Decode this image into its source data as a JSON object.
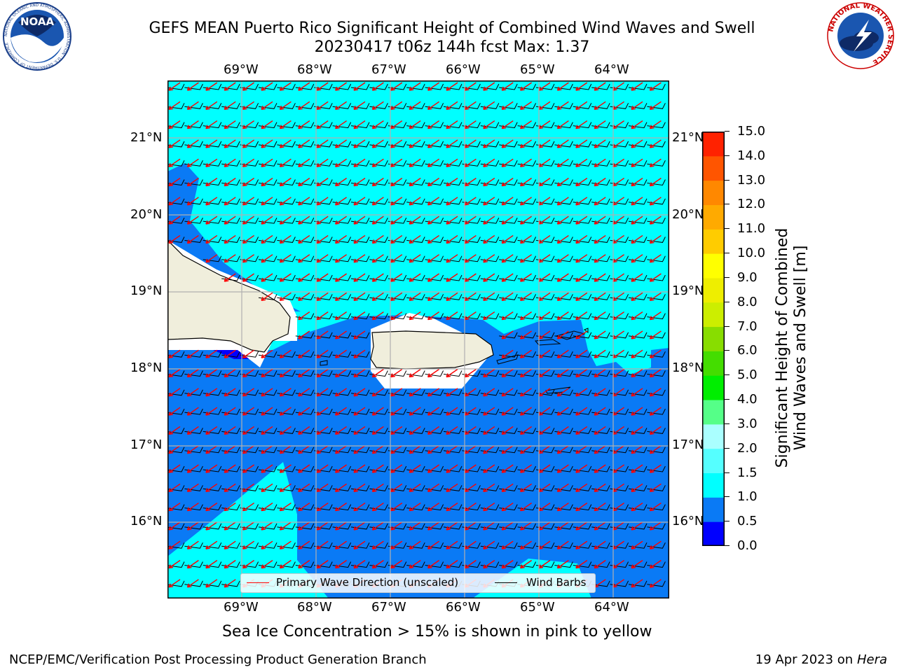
{
  "header": {
    "title_line1": "GEFS MEAN Puerto Rico Significant Height of Combined Wind Waves and Swell",
    "title_line2": "20230417 t06z 144h fcst   Max: 1.37"
  },
  "logos": {
    "noaa_text": "NOAA",
    "noaa_ring_text": "NATIONAL OCEANIC AND ATMOSPHERIC ADMINISTRATION · U.S. DEPARTMENT OF COMMERCE",
    "nws_ring_text": "NATIONAL WEATHER SERVICE"
  },
  "map": {
    "lon_labels": [
      "69°W",
      "68°W",
      "67°W",
      "66°W",
      "65°W",
      "64°W"
    ],
    "lat_labels": [
      "21°N",
      "20°N",
      "19°N",
      "18°N",
      "17°N",
      "16°N"
    ],
    "colors": {
      "ocean_light": "#00ffff",
      "ocean_dark": "#0a7af5",
      "land": "#f0eedc",
      "ice_free_white": "#ffffff",
      "wave_arrow": "#ff0000",
      "wind_barb": "#000000",
      "grid": "#b0b0b0"
    },
    "legend": {
      "primary_wave": "Primary Wave Direction (unscaled)",
      "wind_barbs": "Wind Barbs"
    }
  },
  "colorbar": {
    "label_line1": "Significant Height of Combined",
    "label_line2": "Wind Waves and Swell [m]",
    "ticks": [
      "0.0",
      "0.5",
      "1.0",
      "1.5",
      "2.0",
      "3.0",
      "4.0",
      "5.0",
      "6.0",
      "7.0",
      "8.0",
      "9.0",
      "10.0",
      "11.0",
      "12.0",
      "13.0",
      "14.0",
      "15.0"
    ],
    "colors": [
      "#0000ff",
      "#0a7af5",
      "#00ffff",
      "#55ffff",
      "#aaffff",
      "#55ff88",
      "#00ee00",
      "#44dd00",
      "#88dd00",
      "#ccee00",
      "#eeee00",
      "#ffff00",
      "#ffcc00",
      "#ffaa00",
      "#ff8800",
      "#ff5500",
      "#ff2200"
    ]
  },
  "caption": "Sea Ice Concentration > 15% is shown in pink to yellow",
  "footer": {
    "left": "NCEP/EMC/Verification Post Processing Product Generation Branch",
    "right_date": "19 Apr 2023 on ",
    "right_host": "Hera"
  }
}
